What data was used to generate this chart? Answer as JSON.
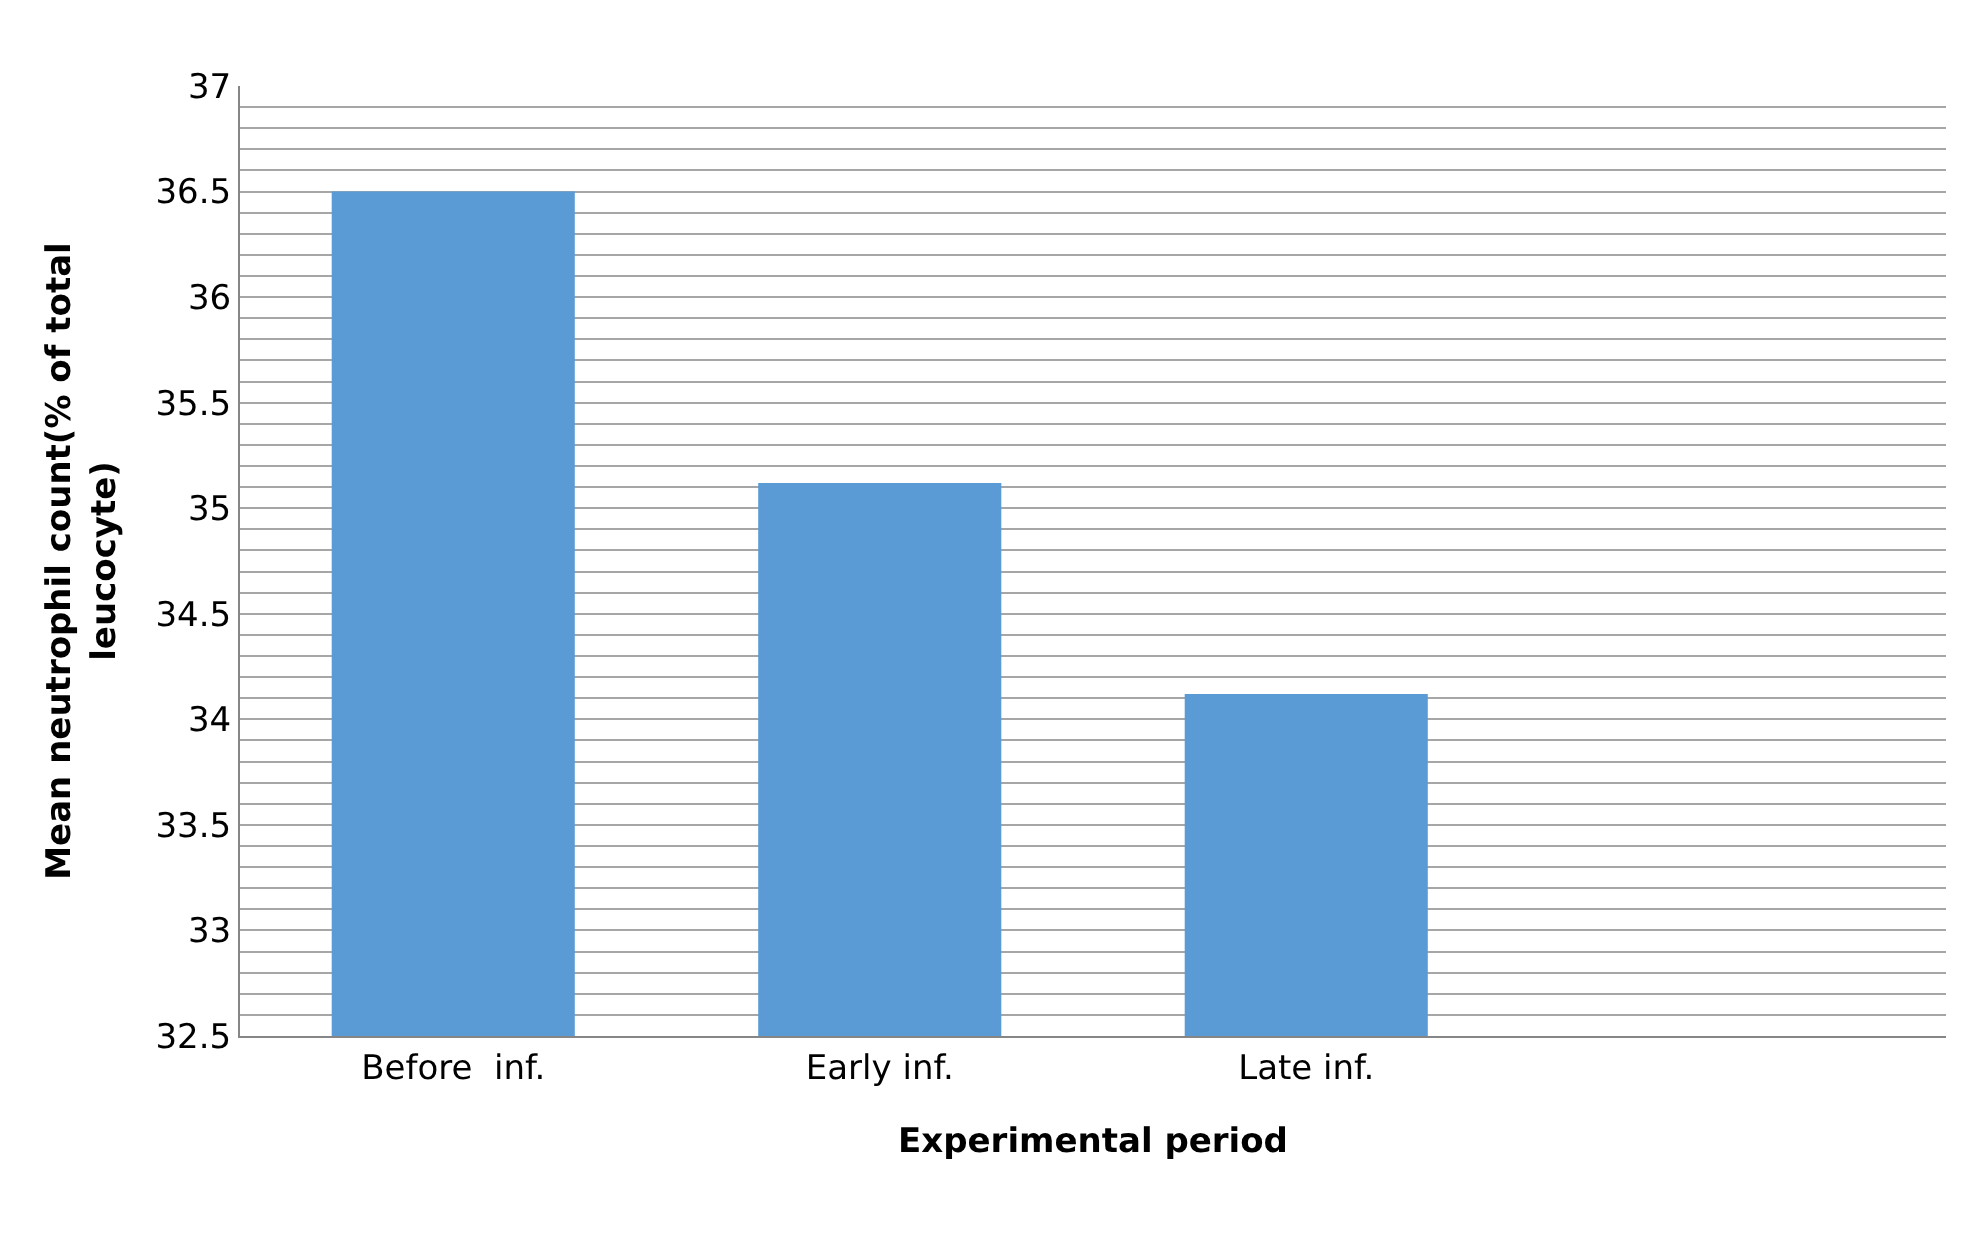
{
  "chart_data": {
    "type": "bar",
    "xlabel": "Experimental period",
    "ylabel": "Mean neutrophil count(% of total\nleucocyte)",
    "categories": [
      "Before  inf.",
      "Early inf.",
      "Late inf.",
      null
    ],
    "values": [
      36.5,
      35.12,
      34.12,
      null
    ],
    "color": "#5b9bd5",
    "ylim": [
      32.5,
      37
    ],
    "yticks": [
      32.5,
      {
        "value": 32.6,
        "label": null
      },
      {
        "value": 32.7,
        "label": null
      },
      {
        "value": 32.8,
        "label": null
      },
      {
        "value": 32.9,
        "label": null
      },
      33,
      {
        "value": 33.1,
        "label": null
      },
      {
        "value": 33.2,
        "label": null
      },
      {
        "value": 33.3,
        "label": null
      },
      {
        "value": 33.4,
        "label": null
      },
      33.5,
      {
        "value": 33.6,
        "label": null
      },
      {
        "value": 33.7,
        "label": null
      },
      {
        "value": 33.8,
        "label": null
      },
      {
        "value": 33.9,
        "label": null
      },
      34,
      {
        "value": 34.1,
        "label": null
      },
      {
        "value": 34.2,
        "label": null
      },
      {
        "value": 34.3,
        "label": null
      },
      {
        "value": 34.4,
        "label": null
      },
      34.5,
      {
        "value": 34.6,
        "label": null
      },
      {
        "value": 34.7,
        "label": null
      },
      {
        "value": 34.8,
        "label": null
      },
      {
        "value": 34.9,
        "label": null
      },
      35,
      {
        "value": 35.1,
        "label": null
      },
      {
        "value": 35.2,
        "label": null
      },
      {
        "value": 35.3,
        "label": null
      },
      {
        "value": 35.4,
        "label": null
      },
      35.5,
      {
        "value": 35.6,
        "label": null
      },
      {
        "value": 35.7,
        "label": null
      },
      {
        "value": 35.8,
        "label": null
      },
      {
        "value": 35.9,
        "label": null
      },
      36,
      {
        "value": 36.1,
        "label": null
      },
      {
        "value": 36.2,
        "label": null
      },
      {
        "value": 36.3,
        "label": null
      },
      {
        "value": 36.4,
        "label": null
      },
      36.5,
      {
        "value": 36.6,
        "label": null
      },
      {
        "value": 36.7,
        "label": null
      },
      {
        "value": 36.8,
        "label": null
      },
      {
        "value": 36.9,
        "label": null
      },
      37
    ],
    "grid": "y"
  }
}
